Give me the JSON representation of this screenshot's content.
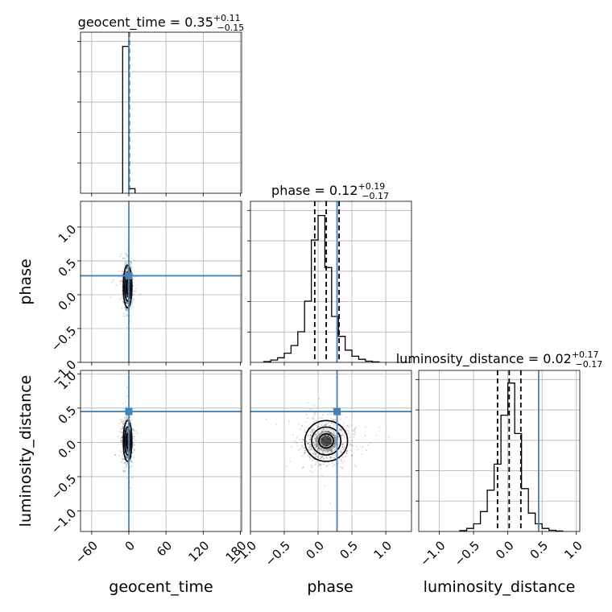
{
  "chart_data": {
    "type": "corner",
    "parameters": [
      "geocent_time",
      "phase",
      "luminosity_distance"
    ],
    "titles": {
      "geocent_time": {
        "name": "geocent_time",
        "median": "0.35",
        "plus": "+0.11",
        "minus": "−0.15"
      },
      "phase": {
        "name": "phase",
        "median": "0.12",
        "plus": "+0.19",
        "minus": "−0.17"
      },
      "luminosity_distance": {
        "name": "luminosity_distance",
        "median": "0.02",
        "plus": "+0.17",
        "minus": "−0.17"
      }
    },
    "axis_labels": {
      "geocent_time": "geocent_time",
      "phase": "phase",
      "luminosity_distance": "luminosity_distance"
    },
    "ranges": {
      "geocent_time": [
        -78,
        182
      ],
      "phase": [
        -1.0,
        1.38
      ],
      "luminosity_distance": [
        -1.3,
        1.05
      ]
    },
    "ticks": {
      "geocent_time": [
        -60,
        0,
        60,
        120,
        180
      ],
      "phase": [
        -1.0,
        -0.5,
        0.0,
        0.5,
        1.0
      ],
      "luminosity_distance": [
        -1.0,
        -0.5,
        0.0,
        0.5,
        1.0
      ]
    },
    "tick_labels": {
      "geocent_time": [
        "−60",
        "0",
        "60",
        "120",
        "180"
      ],
      "phase": [
        "−1.0",
        "−0.5",
        "0.0",
        "0.5",
        "1.0"
      ],
      "luminosity_distance": [
        "−1.0",
        "−0.5",
        "0.0",
        "0.5",
        "1.0"
      ]
    },
    "truths": {
      "geocent_time": 0,
      "phase": 0.28,
      "luminosity_distance": 0.45
    },
    "quantiles": {
      "geocent_time": [
        0.2,
        0.35,
        0.46
      ],
      "phase": [
        -0.05,
        0.12,
        0.31
      ],
      "luminosity_distance": [
        -0.15,
        0.02,
        0.19
      ]
    },
    "histograms": {
      "geocent_time": {
        "edges": [
          -10,
          0,
          10
        ],
        "counts": [
          0.96,
          0.03
        ]
      },
      "phase": {
        "edges": [
          -0.8,
          -0.7,
          -0.6,
          -0.5,
          -0.4,
          -0.3,
          -0.2,
          -0.1,
          0.0,
          0.1,
          0.2,
          0.3,
          0.4,
          0.5,
          0.6,
          0.7,
          0.8,
          0.9
        ],
        "counts": [
          0.005,
          0.015,
          0.03,
          0.06,
          0.11,
          0.2,
          0.4,
          0.8,
          0.96,
          0.62,
          0.3,
          0.17,
          0.08,
          0.04,
          0.02,
          0.008,
          0.003
        ]
      },
      "luminosity_distance": {
        "edges": [
          -0.7,
          -0.6,
          -0.5,
          -0.4,
          -0.3,
          -0.2,
          -0.1,
          0.0,
          0.1,
          0.2,
          0.3,
          0.4,
          0.5,
          0.6,
          0.7,
          0.8
        ],
        "counts": [
          0.006,
          0.02,
          0.05,
          0.13,
          0.27,
          0.44,
          0.76,
          0.97,
          0.64,
          0.28,
          0.12,
          0.05,
          0.02,
          0.008,
          0.003
        ]
      }
    },
    "contours_2d": {
      "phase_vs_geocent_time": {
        "center": [
          -2,
          0.12
        ],
        "sigma": [
          4,
          0.18
        ]
      },
      "luminosity_distance_vs_geocent_time": {
        "center": [
          -2,
          0.02
        ],
        "sigma": [
          4,
          0.17
        ]
      },
      "luminosity_distance_vs_phase": {
        "center": [
          0.12,
          0.02
        ],
        "sigma": [
          0.18,
          0.17
        ]
      }
    },
    "colors": {
      "truth": "#4682b4",
      "samples": "#000000",
      "grid": "#b0b0b0"
    },
    "grid": true
  }
}
